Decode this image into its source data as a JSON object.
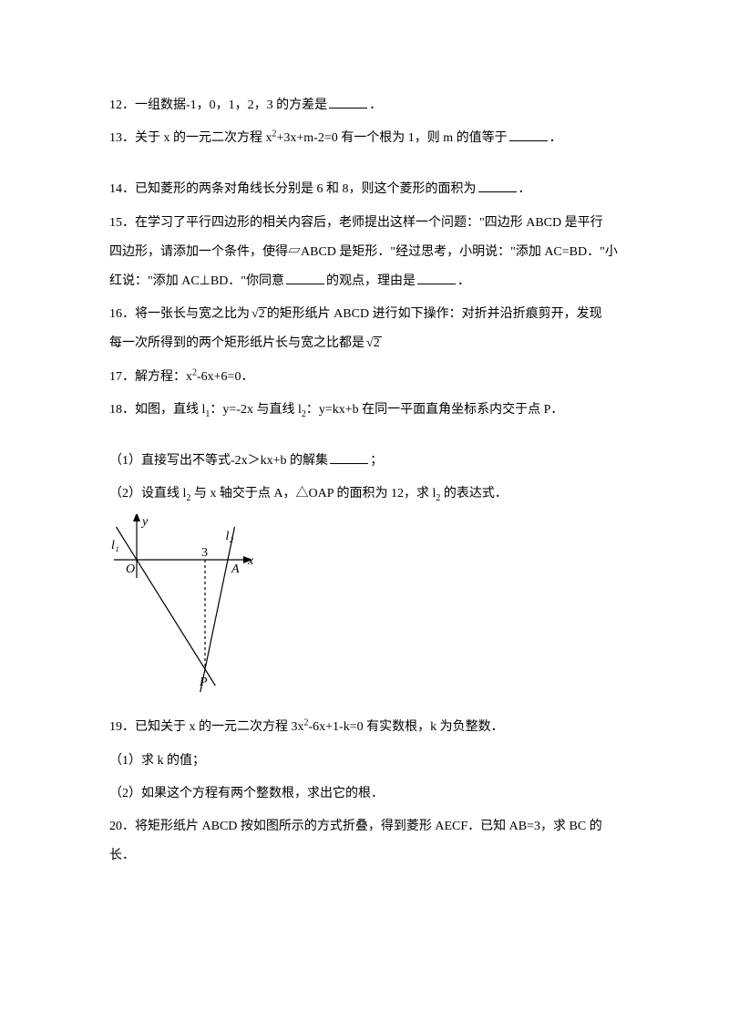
{
  "q12": {
    "num": "12．",
    "text_a": "一组数据-1，0，1，2，3 的方差是",
    "text_b": "．"
  },
  "q13": {
    "num": "13．",
    "text_a": "关于 x 的一元二次方程 x",
    "sup1": "2",
    "text_b": "+3x+m-2=0 有一个根为 1，则 m 的值等于",
    "text_c": "．"
  },
  "q14": {
    "num": "14．",
    "text_a": "已知菱形的两条对角线长分别是 6 和 8，则这个菱形的面积为",
    "text_b": "．"
  },
  "q15": {
    "num": "15．",
    "line1_a": "在学习了平行四边形的相关内容后，老师提出这样一个问题：\"四边形 ABCD 是平行",
    "line2_a": "四边形，请添加一个条件，使得▱ABCD 是矩形．\"经过思考，小明说：\"添加 AC=BD．\"小",
    "line3_a": "红说：\"添加 AC⊥BD．\"你同意",
    "line3_b": "的观点，理由是",
    "line3_c": "．"
  },
  "q16": {
    "num": "16．",
    "line1_a": "将一张长与宽之比为",
    "rad1": "2",
    "line1_b": "的矩形纸片 ABCD 进行如下操作：对折并沿折痕剪开，发现",
    "line2_a": "每一次所得到的两个矩形纸片长与宽之比都是",
    "rad2": "2"
  },
  "q17": {
    "num": "17．",
    "text_a": "解方程：x",
    "sup1": "2",
    "text_b": "-6x+6=0．"
  },
  "q18": {
    "num": "18．",
    "text_a": "如图，直线 l",
    "sub1": "1",
    "text_b": "：y=-2x 与直线 l",
    "sub2": "2",
    "text_c": "：y=kx+b 在同一平面直角坐标系内交于点 P．",
    "p1_a": "（1）直接写出不等式-2x＞kx+b 的解集",
    "p1_b": "；",
    "p2_a": "（2）设直线 l",
    "p2_sub": "2",
    "p2_b": " 与 x 轴交于点 A，△OAP 的面积为 12，求 l",
    "p2_sub2": "2",
    "p2_c": " 的表达式．"
  },
  "q19": {
    "num": "19．",
    "text_a": "已知关于 x 的一元二次方程 3x",
    "sup1": "2",
    "text_b": "-6x+1-k=0 有实数根，k 为负整数．",
    "p1": "（1）求 k 的值；",
    "p2": "（2）如果这个方程有两个整数根，求出它的根．"
  },
  "q20": {
    "num": "20．",
    "line1": "将矩形纸片 ABCD 按如图所示的方式折叠，得到菱形 AECF．已知 AB=3，求 BC 的",
    "line2": "长．"
  },
  "figure": {
    "y_label": "y",
    "x_label": "x",
    "l1_label": "l₁",
    "l2_label": "l₂",
    "O_label": "O",
    "A_label": "A",
    "P_label": "P",
    "tick3": "3",
    "width": 160,
    "height": 195,
    "axis_color": "#000000",
    "line_color": "#000000",
    "font": "italic 14px serif",
    "font_upright": "14px serif"
  }
}
